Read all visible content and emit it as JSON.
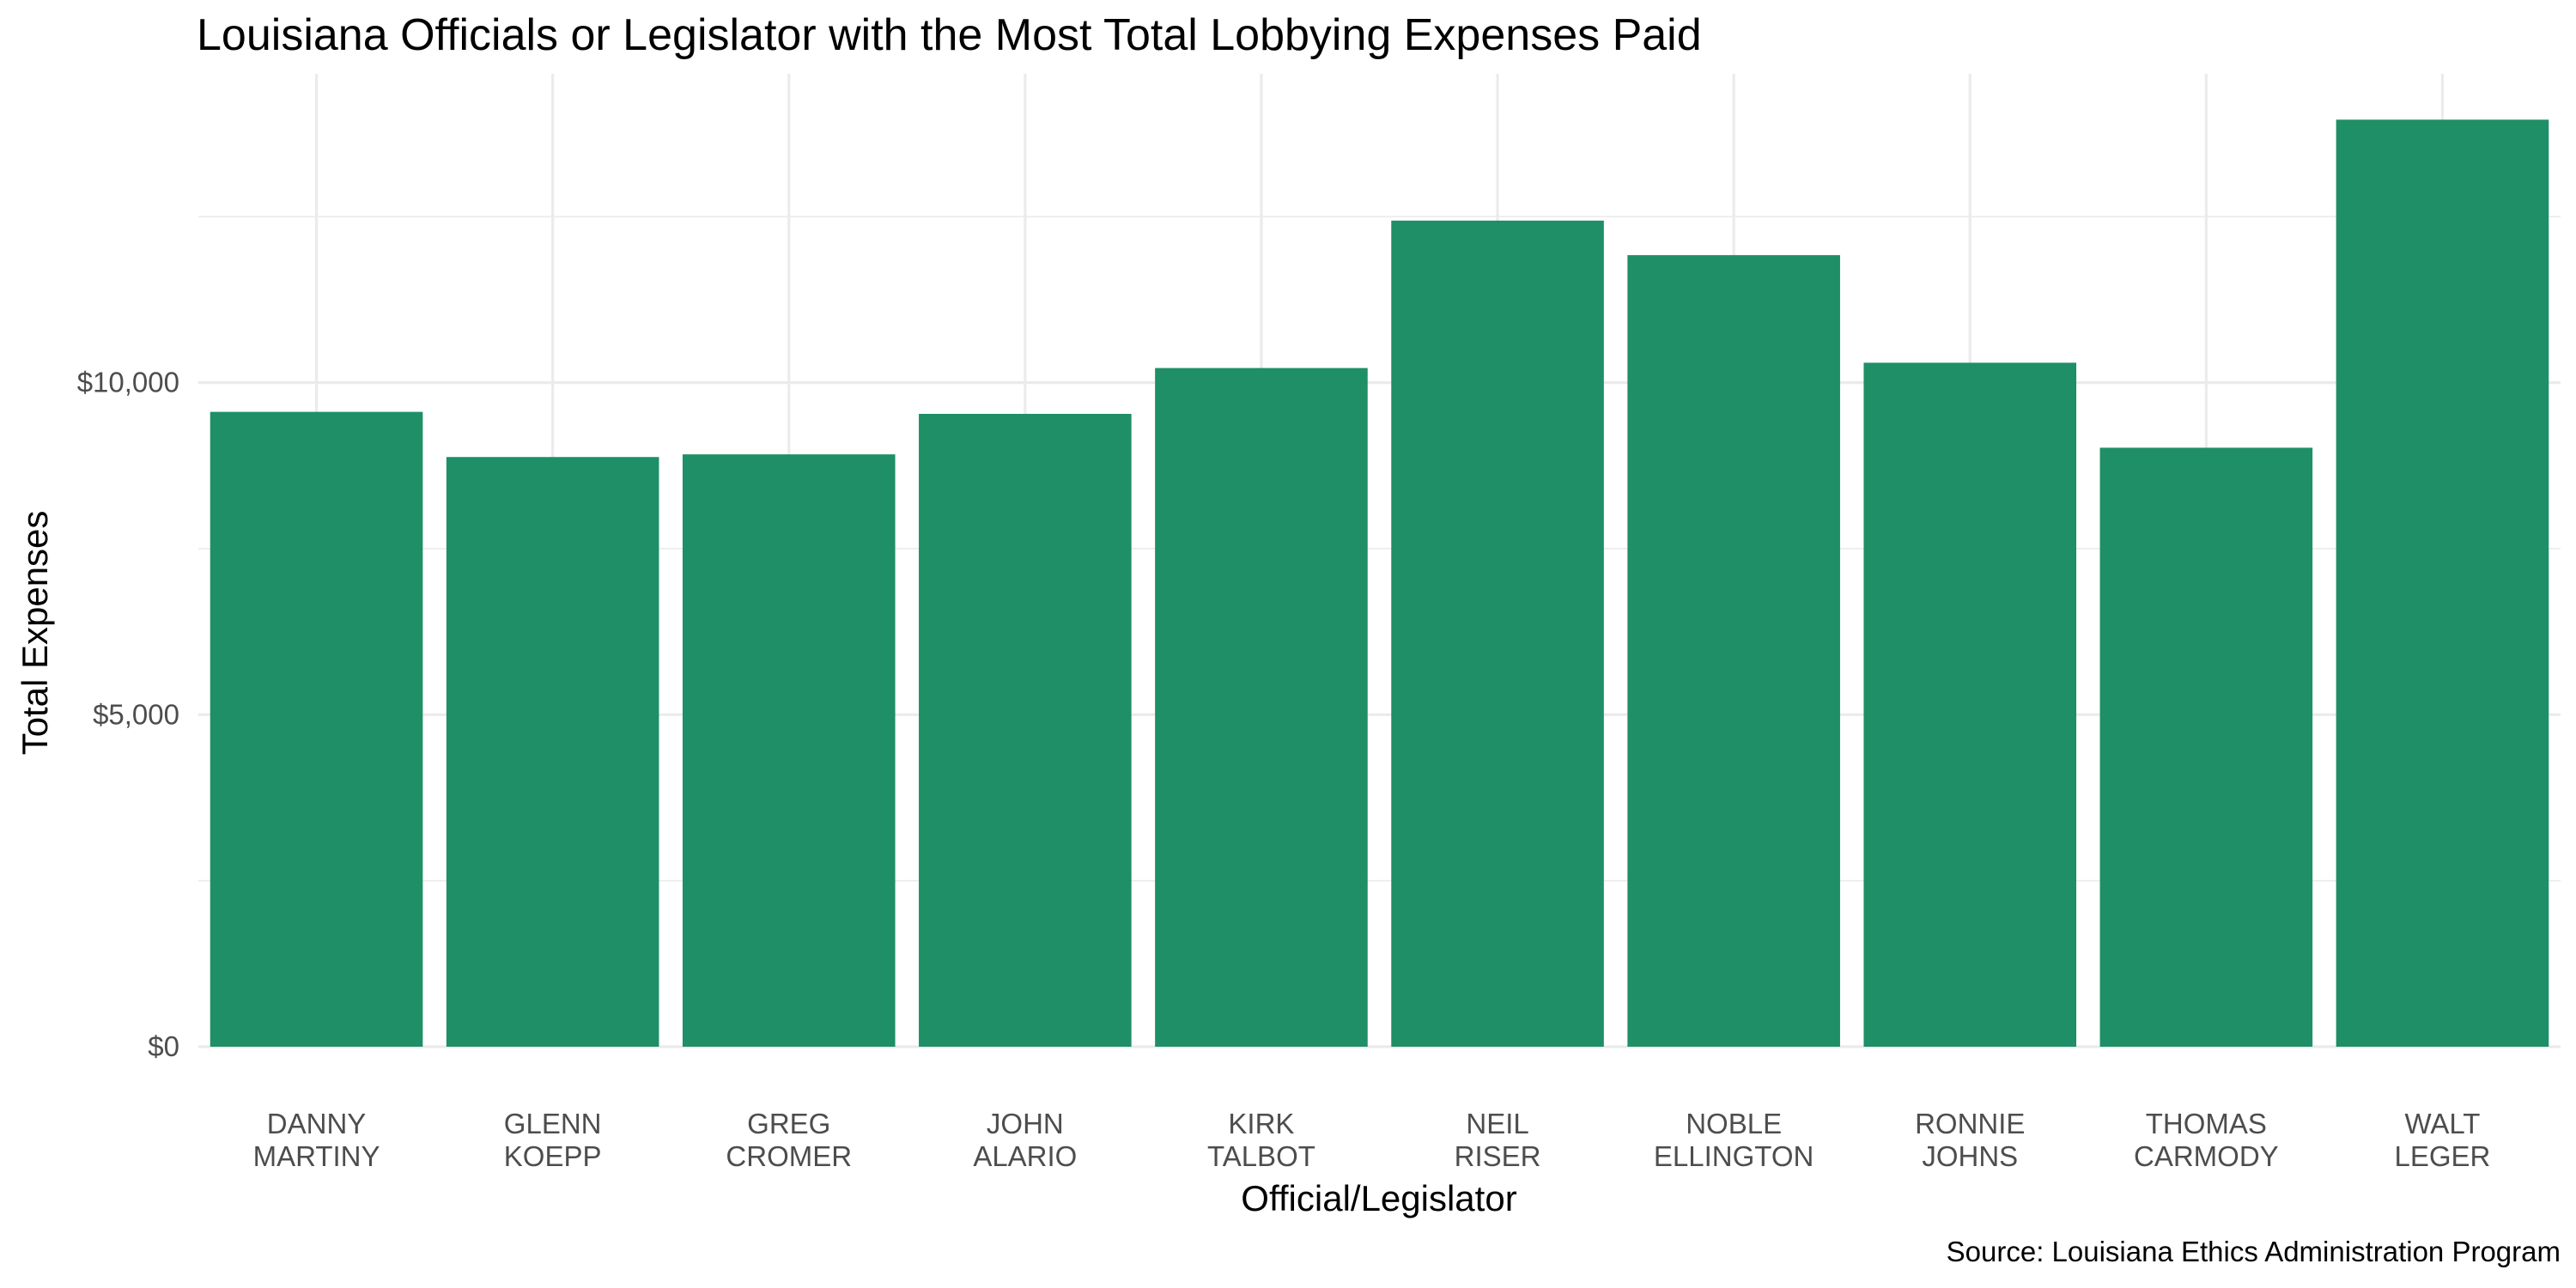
{
  "chart_data": {
    "type": "bar",
    "title": "Louisiana Officials or Legislator with the Most Total Lobbying Expenses Paid",
    "xlabel": "Official/Legislator",
    "ylabel": "Total Expenses",
    "caption": "Source: Louisiana Ethics Administration Program",
    "categories": [
      [
        "DANNY",
        "MARTINY"
      ],
      [
        "GLENN",
        "KOEPP"
      ],
      [
        "GREG",
        "CROMER"
      ],
      [
        "JOHN",
        "ALARIO"
      ],
      [
        "KIRK",
        "TALBOT"
      ],
      [
        "NEIL",
        "RISER"
      ],
      [
        "NOBLE",
        "ELLINGTON"
      ],
      [
        "RONNIE",
        "JOHNS"
      ],
      [
        "THOMAS",
        "CARMODY"
      ],
      [
        "WALT",
        "LEGER"
      ]
    ],
    "values": [
      9560,
      8880,
      8920,
      9530,
      10220,
      12440,
      11920,
      10300,
      9020,
      13960
    ],
    "ylim": [
      0,
      14650
    ],
    "y_ticks": [
      0,
      5000,
      10000
    ],
    "y_tick_labels": [
      "$0",
      "$5,000",
      "$10,000"
    ],
    "bar_color": "#1e8f66",
    "grid": true,
    "legend": "none"
  }
}
